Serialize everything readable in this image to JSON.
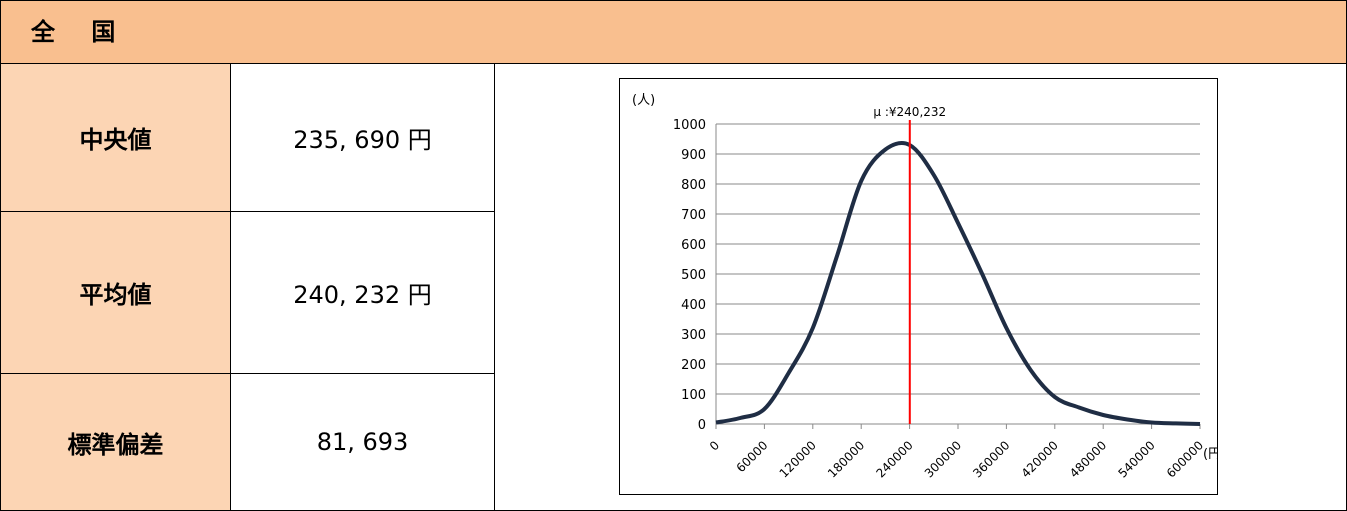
{
  "header": {
    "title": "全 国"
  },
  "rows": [
    {
      "label": "中央値",
      "value": "235, 690 円"
    },
    {
      "label": "平均値",
      "value": "240, 232 円"
    },
    {
      "label": "標準偏差",
      "value": "81, 693"
    }
  ],
  "chart_data": {
    "type": "line",
    "ylabel": "(人)",
    "xunit": "(円)",
    "ylim": [
      0,
      1000
    ],
    "xlim": [
      0,
      600000
    ],
    "yticks": [
      0,
      100,
      200,
      300,
      400,
      500,
      600,
      700,
      800,
      900,
      1000
    ],
    "xticks": [
      0,
      60000,
      120000,
      180000,
      240000,
      300000,
      360000,
      420000,
      480000,
      540000,
      600000
    ],
    "grid": true,
    "series": [
      {
        "color": "#1f2d44",
        "x": [
          0,
          30000,
          60000,
          90000,
          120000,
          150000,
          180000,
          210000,
          240000,
          270000,
          300000,
          330000,
          360000,
          390000,
          420000,
          450000,
          480000,
          510000,
          540000,
          570000,
          600000
        ],
        "y": [
          5,
          20,
          50,
          170,
          320,
          560,
          810,
          915,
          930,
          830,
          670,
          500,
          320,
          180,
          90,
          55,
          30,
          15,
          5,
          2,
          0
        ]
      }
    ],
    "mean_line": {
      "x": 240232,
      "label": "μ :¥240,232",
      "color": "#ff0000"
    }
  }
}
